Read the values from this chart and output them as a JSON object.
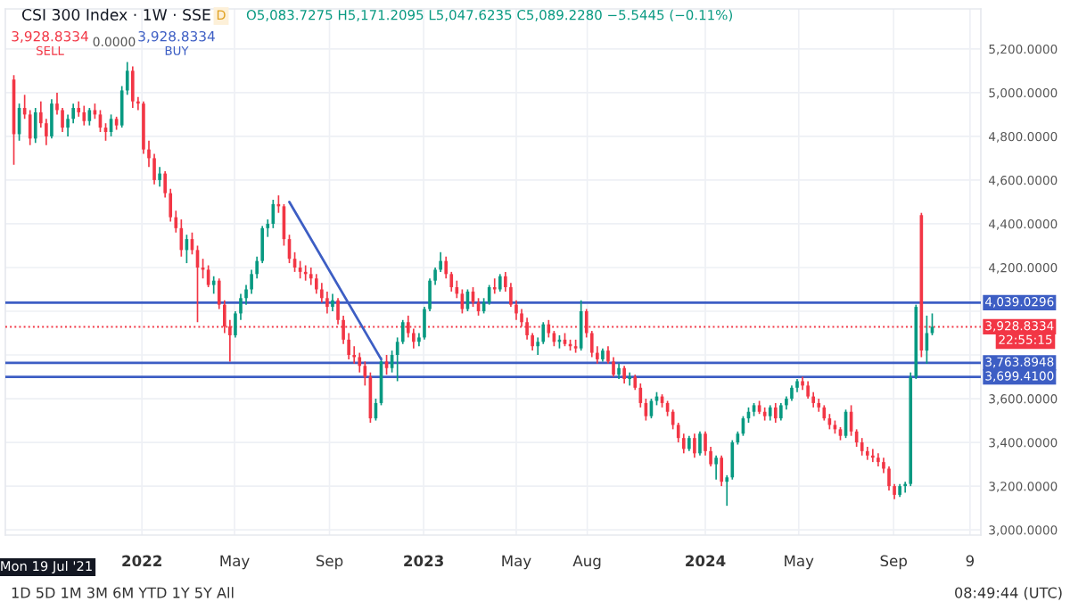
{
  "chart_data": {
    "type": "candlestick",
    "title": "CSI 300 Index · 1W · SSE",
    "subtitle": "O5,083.7275 H5,171.2095 L5,047.6235 C5,089.2280 −5.5445 (−0.11%)",
    "xlim": [
      "2021-07-08",
      "2024-12-23"
    ],
    "ylim": [
      2976,
      5383
    ],
    "xticks": [
      {
        "value": "2022-01-01",
        "label": "2022"
      },
      {
        "value": "2022-05-01",
        "label": "May"
      },
      {
        "value": "2022-09-01",
        "label": "Sep"
      },
      {
        "value": "2023-01-01",
        "label": "2023"
      },
      {
        "value": "2023-05-01",
        "label": "May"
      },
      {
        "value": "2023-08-01",
        "label": "Aug"
      },
      {
        "value": "2024-01-01",
        "label": "2024"
      },
      {
        "value": "2024-05-01",
        "label": "May"
      },
      {
        "value": "2024-09-01",
        "label": "Sep"
      },
      {
        "value": "2024-12-09",
        "label": "9"
      }
    ],
    "yticks": [
      {
        "value": 3000,
        "label": "3,000.0000"
      },
      {
        "value": 3200,
        "label": "3,200.0000"
      },
      {
        "value": 3400,
        "label": "3,400.0000"
      },
      {
        "value": 3600,
        "label": "3,600.0000"
      },
      {
        "value": 3800,
        "label": null
      },
      {
        "value": 4000,
        "label": null
      },
      {
        "value": 4200,
        "label": "4,200.0000"
      },
      {
        "value": 4400,
        "label": "4,400.0000"
      },
      {
        "value": 4600,
        "label": "4,600.0000"
      },
      {
        "value": 4800,
        "label": "4,800.0000"
      },
      {
        "value": 5000,
        "label": "5,000.0000"
      },
      {
        "value": 5200,
        "label": "5,200.0000"
      }
    ],
    "grid": true,
    "series": [
      {
        "colors": [
          "#f23645",
          "#089981",
          "#f23645",
          "#f23645",
          "#089981",
          "#f23645",
          "#f23645",
          "#089981",
          "#f23645",
          "#f23645",
          "#089981",
          "#089981",
          "#f23645",
          "#f23645",
          "#089981",
          "#f23645",
          "#f23645",
          "#f23645",
          "#089981",
          "#f23645",
          "#089981",
          "#089981",
          "#f23645",
          "#f23645",
          "#f23645",
          "#f23645",
          "#f23645",
          "#089981",
          "#f23645",
          "#f23645",
          "#f23645",
          "#f23645",
          "#089981",
          "#f23645",
          "#f23645",
          "#f23645",
          "#f23645",
          "#089981",
          "#f23645",
          "#f23645",
          "#f23645",
          "#089981",
          "#089981",
          "#089981",
          "#089981",
          "#089981",
          "#089981",
          "#089981",
          "#089981",
          "#f23645",
          "#f23645",
          "#f23645",
          "#f23645",
          "#f23645",
          "#f23645",
          "#f23645",
          "#f23645",
          "#f23645",
          "#f23645",
          "#089981",
          "#f23645",
          "#f23645",
          "#f23645",
          "#f23645",
          "#f23645",
          "#f23645",
          "#f23645",
          "#089981",
          "#089981",
          "#f23645",
          "#089981",
          "#089981",
          "#089981",
          "#f23645",
          "#f23645",
          "#089981",
          "#089981",
          "#089981",
          "#089981",
          "#089981",
          "#f23645",
          "#f23645",
          "#f23645",
          "#f23645",
          "#089981",
          "#f23645",
          "#f23645",
          "#089981",
          "#089981",
          "#f23645",
          "#089981",
          "#f23645",
          "#f23645",
          "#f23645",
          "#f23645",
          "#f23645",
          "#f23645",
          "#089981",
          "#089981",
          "#f23645",
          "#f23645",
          "#089981",
          "#f23645",
          "#f23645",
          "#f23645",
          "#089981",
          "#f23645",
          "#f23645",
          "#f23645",
          "#089981",
          "#f23645",
          "#f23645",
          "#089981",
          "#f23645",
          "#089981",
          "#f23645",
          "#f23645",
          "#f23645",
          "#089981",
          "#089981",
          "#f23645",
          "#f23645",
          "#f23645",
          "#f23645",
          "#f23645",
          "#089981",
          "#f23645",
          "#089981",
          "#f23645",
          "#f23645",
          "#089981",
          "#f23645",
          "#089981",
          "#089981",
          "#089981",
          "#089981",
          "#089981",
          "#089981",
          "#f23645",
          "#f23645",
          "#089981",
          "#f23645",
          "#089981",
          "#089981",
          "#089981",
          "#089981",
          "#f23645",
          "#f23645",
          "#f23645",
          "#f23645",
          "#f23645",
          "#f23645",
          "#f23645",
          "#f23645",
          "#089981",
          "#f23645",
          "#f23645",
          "#f23645",
          "#f23645",
          "#f23645",
          "#f23645",
          "#f23645",
          "#f23645",
          "#f23645",
          "#089981",
          "#089981",
          "#089981",
          "#089981",
          "#f23645",
          "#089981",
          "#089981"
        ],
        "x": [
          "2021-07-19",
          "2021-07-26",
          "2021-08-02",
          "2021-08-09",
          "2021-08-16",
          "2021-08-23",
          "2021-08-30",
          "2021-09-06",
          "2021-09-13",
          "2021-09-20",
          "2021-09-27",
          "2021-10-04",
          "2021-10-11",
          "2021-10-18",
          "2021-10-25",
          "2021-11-01",
          "2021-11-08",
          "2021-11-15",
          "2021-11-22",
          "2021-11-29",
          "2021-12-06",
          "2021-12-13",
          "2021-12-20",
          "2021-12-27",
          "2022-01-03",
          "2022-01-10",
          "2022-01-17",
          "2022-01-24",
          "2022-01-31",
          "2022-02-07",
          "2022-02-14",
          "2022-02-21",
          "2022-02-28",
          "2022-03-07",
          "2022-03-14",
          "2022-03-21",
          "2022-03-28",
          "2022-04-04",
          "2022-04-11",
          "2022-04-18",
          "2022-04-25",
          "2022-05-02",
          "2022-05-09",
          "2022-05-16",
          "2022-05-23",
          "2022-05-30",
          "2022-06-06",
          "2022-06-13",
          "2022-06-20",
          "2022-06-27",
          "2022-07-04",
          "2022-07-11",
          "2022-07-18",
          "2022-07-25",
          "2022-08-01",
          "2022-08-08",
          "2022-08-15",
          "2022-08-22",
          "2022-08-29",
          "2022-09-05",
          "2022-09-12",
          "2022-09-19",
          "2022-09-26",
          "2022-10-03",
          "2022-10-10",
          "2022-10-17",
          "2022-10-24",
          "2022-10-31",
          "2022-11-07",
          "2022-11-14",
          "2022-11-21",
          "2022-11-28",
          "2022-12-05",
          "2022-12-12",
          "2022-12-19",
          "2022-12-26",
          "2023-01-02",
          "2023-01-09",
          "2023-01-16",
          "2023-01-23",
          "2023-01-30",
          "2023-02-06",
          "2023-02-13",
          "2023-02-20",
          "2023-02-27",
          "2023-03-06",
          "2023-03-13",
          "2023-03-20",
          "2023-03-27",
          "2023-04-03",
          "2023-04-10",
          "2023-04-17",
          "2023-04-24",
          "2023-05-01",
          "2023-05-08",
          "2023-05-15",
          "2023-05-22",
          "2023-05-29",
          "2023-06-05",
          "2023-06-12",
          "2023-06-19",
          "2023-06-26",
          "2023-07-03",
          "2023-07-10",
          "2023-07-17",
          "2023-07-24",
          "2023-07-31",
          "2023-08-07",
          "2023-08-14",
          "2023-08-21",
          "2023-08-28",
          "2023-09-04",
          "2023-09-11",
          "2023-09-18",
          "2023-09-25",
          "2023-10-02",
          "2023-10-09",
          "2023-10-16",
          "2023-10-23",
          "2023-10-30",
          "2023-11-06",
          "2023-11-13",
          "2023-11-20",
          "2023-11-27",
          "2023-12-04",
          "2023-12-11",
          "2023-12-18",
          "2023-12-25",
          "2024-01-01",
          "2024-01-08",
          "2024-01-15",
          "2024-01-22",
          "2024-01-29",
          "2024-02-05",
          "2024-02-12",
          "2024-02-19",
          "2024-02-26",
          "2024-03-04",
          "2024-03-11",
          "2024-03-18",
          "2024-03-25",
          "2024-04-01",
          "2024-04-08",
          "2024-04-15",
          "2024-04-22",
          "2024-04-29",
          "2024-05-06",
          "2024-05-13",
          "2024-05-20",
          "2024-05-27",
          "2024-06-03",
          "2024-06-10",
          "2024-06-17",
          "2024-06-24",
          "2024-07-01",
          "2024-07-08",
          "2024-07-15",
          "2024-07-22",
          "2024-07-29",
          "2024-08-05",
          "2024-08-12",
          "2024-08-19",
          "2024-08-26",
          "2024-09-02",
          "2024-09-09",
          "2024-09-16",
          "2024-09-23",
          "2024-09-30",
          "2024-10-07",
          "2024-10-14",
          "2024-10-21"
        ],
        "ohlc": [
          [
            5060,
            5080,
            4670,
            4810
          ],
          [
            4810,
            4950,
            4780,
            4930
          ],
          [
            4930,
            4990,
            4880,
            4900
          ],
          [
            4900,
            4920,
            4760,
            4790
          ],
          [
            4790,
            4930,
            4770,
            4910
          ],
          [
            4910,
            4960,
            4840,
            4860
          ],
          [
            4860,
            4880,
            4760,
            4800
          ],
          [
            4800,
            4970,
            4790,
            4950
          ],
          [
            4950,
            5000,
            4900,
            4920
          ],
          [
            4920,
            4930,
            4820,
            4840
          ],
          [
            4840,
            4900,
            4800,
            4880
          ],
          [
            4880,
            4950,
            4860,
            4930
          ],
          [
            4930,
            4960,
            4890,
            4910
          ],
          [
            4910,
            4940,
            4850,
            4870
          ],
          [
            4870,
            4930,
            4850,
            4920
          ],
          [
            4920,
            4950,
            4880,
            4900
          ],
          [
            4900,
            4920,
            4820,
            4840
          ],
          [
            4840,
            4860,
            4780,
            4820
          ],
          [
            4820,
            4900,
            4800,
            4880
          ],
          [
            4880,
            4890,
            4830,
            4850
          ],
          [
            4850,
            5030,
            4840,
            5010
          ],
          [
            5010,
            5140,
            4990,
            5100
          ],
          [
            5100,
            5120,
            4930,
            4960
          ],
          [
            4960,
            4980,
            4920,
            4950
          ],
          [
            4950,
            4960,
            4720,
            4740
          ],
          [
            4740,
            4780,
            4660,
            4700
          ],
          [
            4700,
            4720,
            4580,
            4600
          ],
          [
            4600,
            4660,
            4570,
            4630
          ],
          [
            4630,
            4640,
            4520,
            4540
          ],
          [
            4540,
            4560,
            4410,
            4430
          ],
          [
            4430,
            4460,
            4360,
            4380
          ],
          [
            4380,
            4420,
            4250,
            4280
          ],
          [
            4280,
            4350,
            4220,
            4330
          ],
          [
            4330,
            4360,
            4260,
            4280
          ],
          [
            4280,
            4300,
            3950,
            4200
          ],
          [
            4200,
            4240,
            4150,
            4190
          ],
          [
            4190,
            4210,
            4110,
            4120
          ],
          [
            4120,
            4160,
            4080,
            4140
          ],
          [
            4140,
            4150,
            4010,
            4030
          ],
          [
            4030,
            4050,
            3900,
            3930
          ],
          [
            3930,
            3960,
            3770,
            3890
          ],
          [
            3890,
            4000,
            3880,
            3990
          ],
          [
            3990,
            4080,
            3960,
            4060
          ],
          [
            4060,
            4120,
            4030,
            4100
          ],
          [
            4100,
            4190,
            4080,
            4170
          ],
          [
            4170,
            4250,
            4150,
            4230
          ],
          [
            4230,
            4390,
            4220,
            4380
          ],
          [
            4380,
            4420,
            4340,
            4400
          ],
          [
            4400,
            4510,
            4380,
            4490
          ],
          [
            4490,
            4530,
            4450,
            4480
          ],
          [
            4480,
            4490,
            4300,
            4330
          ],
          [
            4330,
            4350,
            4220,
            4240
          ],
          [
            4240,
            4270,
            4180,
            4200
          ],
          [
            4200,
            4230,
            4150,
            4180
          ],
          [
            4180,
            4210,
            4140,
            4170
          ],
          [
            4170,
            4200,
            4120,
            4150
          ],
          [
            4150,
            4170,
            4080,
            4100
          ],
          [
            4100,
            4130,
            4040,
            4060
          ],
          [
            4060,
            4090,
            3990,
            4020
          ],
          [
            4020,
            4080,
            4000,
            4050
          ],
          [
            4050,
            4060,
            3940,
            3960
          ],
          [
            3960,
            3980,
            3850,
            3870
          ],
          [
            3870,
            3900,
            3780,
            3800
          ],
          [
            3800,
            3840,
            3760,
            3790
          ],
          [
            3790,
            3810,
            3720,
            3750
          ],
          [
            3750,
            3770,
            3660,
            3700
          ],
          [
            3700,
            3720,
            3490,
            3510
          ],
          [
            3510,
            3600,
            3500,
            3580
          ],
          [
            3580,
            3790,
            3570,
            3770
          ],
          [
            3770,
            3800,
            3710,
            3740
          ],
          [
            3740,
            3820,
            3720,
            3800
          ],
          [
            3800,
            3880,
            3680,
            3860
          ],
          [
            3860,
            3960,
            3850,
            3950
          ],
          [
            3950,
            3980,
            3880,
            3900
          ],
          [
            3900,
            3920,
            3830,
            3860
          ],
          [
            3860,
            3900,
            3840,
            3880
          ],
          [
            3880,
            4020,
            3870,
            4010
          ],
          [
            4010,
            4150,
            4000,
            4140
          ],
          [
            4140,
            4200,
            4120,
            4190
          ],
          [
            4190,
            4270,
            4180,
            4230
          ],
          [
            4230,
            4250,
            4150,
            4170
          ],
          [
            4170,
            4180,
            4090,
            4110
          ],
          [
            4110,
            4140,
            4060,
            4080
          ],
          [
            4080,
            4100,
            3990,
            4010
          ],
          [
            4010,
            4100,
            4000,
            4090
          ],
          [
            4090,
            4110,
            4020,
            4040
          ],
          [
            4040,
            4060,
            3980,
            4000
          ],
          [
            4000,
            4060,
            3990,
            4040
          ],
          [
            4040,
            4120,
            4030,
            4110
          ],
          [
            4110,
            4150,
            4080,
            4100
          ],
          [
            4100,
            4170,
            4090,
            4160
          ],
          [
            4160,
            4180,
            4090,
            4110
          ],
          [
            4110,
            4130,
            4020,
            4030
          ],
          [
            4030,
            4050,
            3960,
            3990
          ],
          [
            3990,
            4010,
            3930,
            3950
          ],
          [
            3950,
            3970,
            3870,
            3890
          ],
          [
            3890,
            3900,
            3820,
            3840
          ],
          [
            3840,
            3880,
            3800,
            3860
          ],
          [
            3860,
            3950,
            3850,
            3940
          ],
          [
            3940,
            3960,
            3880,
            3900
          ],
          [
            3900,
            3910,
            3840,
            3860
          ],
          [
            3860,
            3890,
            3830,
            3870
          ],
          [
            3870,
            3900,
            3840,
            3850
          ],
          [
            3850,
            3870,
            3820,
            3840
          ],
          [
            3840,
            3870,
            3810,
            3830
          ],
          [
            3830,
            4050,
            3820,
            4000
          ],
          [
            4000,
            4010,
            3880,
            3900
          ],
          [
            3900,
            3910,
            3790,
            3810
          ],
          [
            3810,
            3840,
            3760,
            3780
          ],
          [
            3780,
            3830,
            3770,
            3820
          ],
          [
            3820,
            3840,
            3760,
            3770
          ],
          [
            3770,
            3790,
            3700,
            3710
          ],
          [
            3710,
            3760,
            3690,
            3740
          ],
          [
            3740,
            3750,
            3670,
            3690
          ],
          [
            3690,
            3720,
            3660,
            3700
          ],
          [
            3700,
            3710,
            3640,
            3650
          ],
          [
            3650,
            3670,
            3560,
            3580
          ],
          [
            3580,
            3600,
            3500,
            3520
          ],
          [
            3520,
            3600,
            3510,
            3590
          ],
          [
            3590,
            3630,
            3570,
            3610
          ],
          [
            3610,
            3620,
            3560,
            3580
          ],
          [
            3580,
            3590,
            3520,
            3540
          ],
          [
            3540,
            3550,
            3460,
            3480
          ],
          [
            3480,
            3490,
            3400,
            3420
          ],
          [
            3420,
            3440,
            3350,
            3370
          ],
          [
            3370,
            3430,
            3360,
            3420
          ],
          [
            3420,
            3440,
            3330,
            3350
          ],
          [
            3350,
            3450,
            3340,
            3440
          ],
          [
            3440,
            3450,
            3340,
            3360
          ],
          [
            3360,
            3380,
            3290,
            3300
          ],
          [
            3300,
            3340,
            3230,
            3330
          ],
          [
            3330,
            3340,
            3200,
            3220
          ],
          [
            3220,
            3250,
            3110,
            3240
          ],
          [
            3240,
            3410,
            3230,
            3400
          ],
          [
            3400,
            3450,
            3390,
            3440
          ],
          [
            3440,
            3520,
            3430,
            3510
          ],
          [
            3510,
            3560,
            3490,
            3540
          ],
          [
            3540,
            3580,
            3520,
            3570
          ],
          [
            3570,
            3590,
            3530,
            3540
          ],
          [
            3540,
            3560,
            3500,
            3520
          ],
          [
            3520,
            3570,
            3500,
            3560
          ],
          [
            3560,
            3580,
            3490,
            3510
          ],
          [
            3510,
            3580,
            3500,
            3570
          ],
          [
            3570,
            3610,
            3550,
            3600
          ],
          [
            3600,
            3660,
            3590,
            3650
          ],
          [
            3650,
            3690,
            3630,
            3680
          ],
          [
            3680,
            3700,
            3640,
            3660
          ],
          [
            3660,
            3680,
            3600,
            3610
          ],
          [
            3610,
            3630,
            3560,
            3580
          ],
          [
            3580,
            3600,
            3540,
            3560
          ],
          [
            3560,
            3570,
            3500,
            3510
          ],
          [
            3510,
            3530,
            3460,
            3480
          ],
          [
            3480,
            3500,
            3440,
            3460
          ],
          [
            3460,
            3470,
            3410,
            3430
          ],
          [
            3430,
            3550,
            3420,
            3540
          ],
          [
            3540,
            3570,
            3430,
            3450
          ],
          [
            3450,
            3460,
            3380,
            3400
          ],
          [
            3400,
            3420,
            3340,
            3360
          ],
          [
            3360,
            3380,
            3320,
            3340
          ],
          [
            3340,
            3370,
            3310,
            3330
          ],
          [
            3330,
            3350,
            3290,
            3310
          ],
          [
            3310,
            3330,
            3260,
            3280
          ],
          [
            3280,
            3290,
            3180,
            3200
          ],
          [
            3200,
            3210,
            3140,
            3160
          ],
          [
            3160,
            3210,
            3150,
            3200
          ],
          [
            3200,
            3220,
            3170,
            3210
          ],
          [
            3210,
            3720,
            3200,
            3700
          ],
          [
            3700,
            4030,
            3690,
            4020
          ],
          [
            4440,
            4450,
            3790,
            3820
          ],
          [
            3820,
            3980,
            3760,
            3900
          ],
          [
            3900,
            3990,
            3890,
            3928.8334
          ]
        ]
      },
      {
        "type": "line",
        "color": "#3d5ec4",
        "x": [
          "2022-07-11",
          "2022-11-07"
        ],
        "values": [
          4500,
          3780
        ]
      }
    ],
    "ref_lines": [
      {
        "axis": "y",
        "value": 4039.0296,
        "label": "4,039.0296",
        "color": "#3d5ec4",
        "line_style": "solid"
      },
      {
        "axis": "y",
        "value": 3763.8948,
        "label": "3,763.8948",
        "color": "#3d5ec4",
        "line_style": "solid"
      },
      {
        "axis": "y",
        "value": 3699.41,
        "label": "3,699.4100",
        "color": "#3d5ec4",
        "line_style": "solid"
      },
      {
        "axis": "y",
        "value": 3928.8334,
        "label": "3,928.8334",
        "color": "#f23645",
        "line_style": "dotted"
      }
    ],
    "annotations": [
      "D",
      "3,928.8334",
      "SELL",
      "0.0000",
      "3,928.8334",
      "BUY",
      "22:55:15",
      "Mon 19 Jul '21",
      "1D 5D 1M 3M 6M YTD 1Y 5Y All",
      "08:49:44 (UTC)"
    ]
  }
}
